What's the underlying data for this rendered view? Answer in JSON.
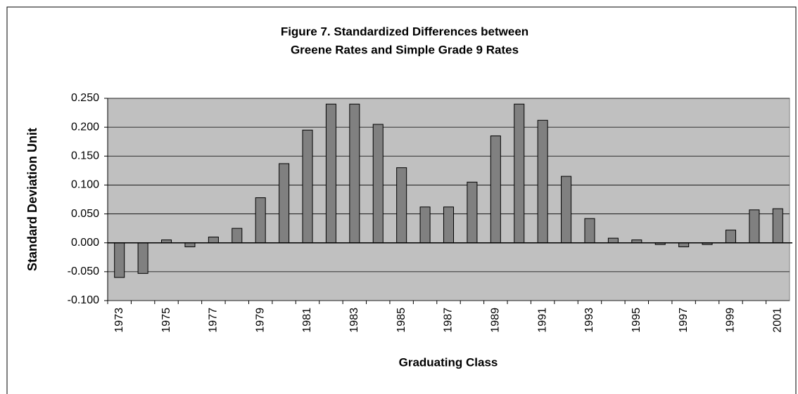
{
  "chart_data": {
    "type": "bar",
    "title": [
      "Figure 7. Standardized Differences between",
      "Greene Rates and Simple Grade 9 Rates"
    ],
    "x_label": "Graduating Class",
    "y_label": "Standard Deviation Unit",
    "categories": [
      "1973",
      null,
      "1975",
      null,
      "1977",
      null,
      "1979",
      null,
      "1981",
      null,
      "1983",
      null,
      "1985",
      null,
      "1987",
      null,
      "1989",
      null,
      "1991",
      null,
      "1993",
      null,
      "1995",
      null,
      "1997",
      null,
      "1999",
      null,
      "2001"
    ],
    "values": [
      -0.06,
      -0.053,
      0.005,
      -0.007,
      0.01,
      0.025,
      0.078,
      0.137,
      0.195,
      0.24,
      0.24,
      0.205,
      0.13,
      0.062,
      0.062,
      0.105,
      0.185,
      0.24,
      0.212,
      0.115,
      0.042,
      0.008,
      0.005,
      -0.003,
      -0.007,
      -0.003,
      0.022,
      0.057,
      0.059
    ],
    "color": "#808080",
    "background": "#c0c0c0",
    "ylim": [
      -0.1,
      0.25
    ],
    "yticks": [
      {
        "value": -0.1,
        "label": "-0.100"
      },
      {
        "value": -0.05,
        "label": "-0.050"
      },
      {
        "value": 0,
        "label": "0.000"
      },
      {
        "value": 0.05,
        "label": "0.050"
      },
      {
        "value": 0.1,
        "label": "0.100"
      },
      {
        "value": 0.15,
        "label": "0.150"
      },
      {
        "value": 0.2,
        "label": "0.200"
      },
      {
        "value": 0.25,
        "label": "0.250"
      }
    ],
    "grid": true
  }
}
